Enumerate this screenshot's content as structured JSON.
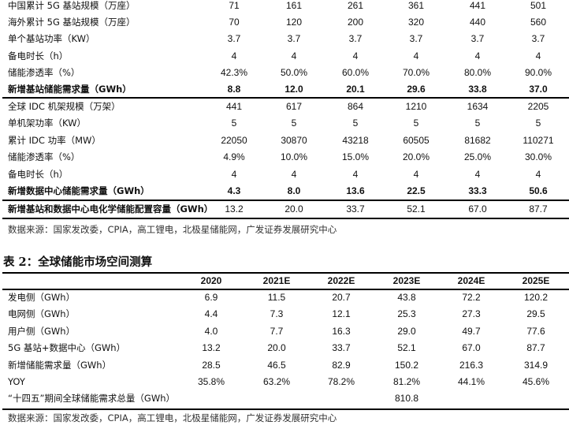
{
  "table1": {
    "section_5g": [
      {
        "label": "中国累计 5G 基站规模（万座）",
        "values": [
          "71",
          "161",
          "261",
          "361",
          "441",
          "501"
        ]
      },
      {
        "label": "海外累计 5G 基站规模（万座）",
        "values": [
          "70",
          "120",
          "200",
          "320",
          "440",
          "560"
        ]
      },
      {
        "label": "单个基站功率（KW）",
        "values": [
          "3.7",
          "3.7",
          "3.7",
          "3.7",
          "3.7",
          "3.7"
        ]
      },
      {
        "label": "备电时长（h）",
        "values": [
          "4",
          "4",
          "4",
          "4",
          "4",
          "4"
        ]
      },
      {
        "label": "储能渗透率（%）",
        "values": [
          "42.3%",
          "50.0%",
          "60.0%",
          "70.0%",
          "80.0%",
          "90.0%"
        ]
      },
      {
        "label": "新增基站储能需求量（GWh）",
        "values": [
          "8.8",
          "12.0",
          "20.1",
          "29.6",
          "33.8",
          "37.0"
        ],
        "bold": true
      }
    ],
    "section_idc": [
      {
        "label": "全球 IDC 机架规模（万架）",
        "values": [
          "441",
          "617",
          "864",
          "1210",
          "1634",
          "2205"
        ]
      },
      {
        "label": "单机架功率（KW）",
        "values": [
          "5",
          "5",
          "5",
          "5",
          "5",
          "5"
        ]
      },
      {
        "label": "累计 IDC 功率（MW）",
        "values": [
          "22050",
          "30870",
          "43218",
          "60505",
          "81682",
          "110271"
        ]
      },
      {
        "label": "储能渗透率（%）",
        "values": [
          "4.9%",
          "10.0%",
          "15.0%",
          "20.0%",
          "25.0%",
          "30.0%"
        ]
      },
      {
        "label": "备电时长（h）",
        "values": [
          "4",
          "4",
          "4",
          "4",
          "4",
          "4"
        ]
      },
      {
        "label": "新增数据中心储能需求量（GWh）",
        "values": [
          "4.3",
          "8.0",
          "13.6",
          "22.5",
          "33.3",
          "50.6"
        ],
        "bold": true
      }
    ],
    "section_total": [
      {
        "label": "新增基站和数据中心电化学储能配置容量（GWh）",
        "values": [
          "13.2",
          "20.0",
          "33.7",
          "52.1",
          "67.0",
          "87.7"
        ],
        "bold_label": true
      }
    ],
    "source": "数据来源：国家发改委，CPIA，高工锂电，北极星储能网，广发证券发展研究中心"
  },
  "table2": {
    "title": "表 2：全球储能市场空间测算",
    "headers": [
      "2020",
      "2021E",
      "2022E",
      "2023E",
      "2024E",
      "2025E"
    ],
    "rows": [
      {
        "label": "发电侧（GWh）",
        "values": [
          "6.9",
          "11.5",
          "20.7",
          "43.8",
          "72.2",
          "120.2"
        ]
      },
      {
        "label": "电网侧（GWh）",
        "values": [
          "4.4",
          "7.3",
          "12.1",
          "25.3",
          "27.3",
          "29.5"
        ]
      },
      {
        "label": "用户侧（GWh）",
        "values": [
          "4.0",
          "7.7",
          "16.3",
          "29.0",
          "49.7",
          "77.6"
        ]
      },
      {
        "label": "5G 基站+数据中心（GWh）",
        "values": [
          "13.2",
          "20.0",
          "33.7",
          "52.1",
          "67.0",
          "87.7"
        ]
      },
      {
        "label": "新增储能需求量（GWh）",
        "values": [
          "28.5",
          "46.5",
          "82.9",
          "150.2",
          "216.3",
          "314.9"
        ]
      },
      {
        "label": "YOY",
        "values": [
          "35.8%",
          "63.2%",
          "78.2%",
          "81.2%",
          "44.1%",
          "45.6%"
        ]
      },
      {
        "label": "“十四五”期间全球储能需求总量（GWh）",
        "values": [
          "",
          "",
          "",
          "810.8",
          "",
          ""
        ]
      }
    ],
    "source": "数据来源：国家发改委，CPIA，高工锂电，北极星储能网，广发证券发展研究中心"
  }
}
